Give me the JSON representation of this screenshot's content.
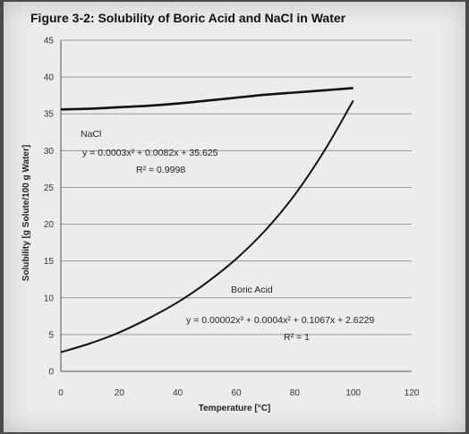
{
  "chart_data": {
    "type": "line",
    "title": "Figure 3-2: Solubility of Boric Acid and NaCl in Water",
    "xlabel": "Temperature [°C]",
    "ylabel": "Solubility [g Solute/100 g Water]",
    "xlim": [
      0,
      120
    ],
    "ylim": [
      0,
      45
    ],
    "x_ticks": [
      "0",
      "20",
      "40",
      "60",
      "80",
      "100",
      "120"
    ],
    "y_ticks": [
      "0",
      "5",
      "10",
      "15",
      "20",
      "25",
      "30",
      "35",
      "40",
      "45"
    ],
    "grid": "horizontal",
    "series": [
      {
        "name": "NaCl",
        "x": [
          0,
          10,
          20,
          30,
          40,
          50,
          60,
          70,
          80,
          90,
          100
        ],
        "y": [
          35.6,
          35.7,
          35.9,
          36.1,
          36.4,
          36.8,
          37.2,
          37.6,
          37.9,
          38.2,
          38.5
        ],
        "color": "#111111"
      },
      {
        "name": "Boric Acid",
        "x": [
          0,
          10,
          20,
          30,
          40,
          50,
          60,
          70,
          80,
          90,
          100
        ],
        "y": [
          2.6,
          3.8,
          5.3,
          7.2,
          9.4,
          12.1,
          15.3,
          19.2,
          24.0,
          29.9,
          36.8
        ],
        "color": "#111111"
      }
    ],
    "annotations": [
      {
        "id": "nacl-label",
        "text": "NaCl"
      },
      {
        "id": "nacl-eq",
        "text": "y = 0.0003x² + 0.0082x + 35.625"
      },
      {
        "id": "nacl-r2",
        "text": "R² = 0.9998"
      },
      {
        "id": "boric-label",
        "text": "Boric Acid"
      },
      {
        "id": "boric-eq",
        "text": "y = 0.00002x³ + 0.0004x² + 0.1067x + 2.6229"
      },
      {
        "id": "boric-r2",
        "text": "R² = 1"
      }
    ]
  }
}
